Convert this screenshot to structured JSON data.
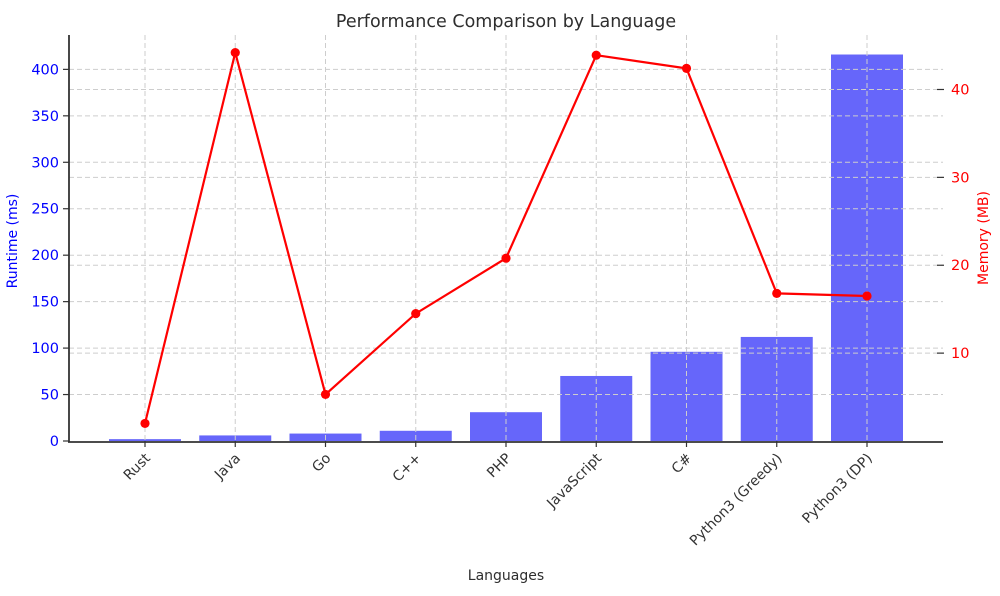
{
  "chart_data": {
    "type": "combo-bar-line-dual-axis",
    "title": "Performance Comparison by Language",
    "xlabel": "Languages",
    "categories": [
      "Rust",
      "Java",
      "Go",
      "C++",
      "PHP",
      "JavaScript",
      "C#",
      "Python3 (Greedy)",
      "Python3 (DP)"
    ],
    "series": [
      {
        "name": "Runtime (ms)",
        "chart": "bar",
        "axis": "left",
        "color": "#6666fa",
        "values": [
          2,
          6,
          8,
          11,
          31,
          70,
          96,
          112,
          416
        ]
      },
      {
        "name": "Memory (MB)",
        "chart": "line",
        "axis": "right",
        "color": "#ff0000",
        "marker": "circle",
        "values": [
          2,
          44.2,
          5.3,
          14.5,
          20.8,
          43.9,
          42.4,
          16.8,
          16.5
        ]
      }
    ],
    "left_axis": {
      "label": "Runtime (ms)",
      "color": "#0000ff",
      "ticks": [
        0,
        50,
        100,
        150,
        200,
        250,
        300,
        350,
        400
      ],
      "range": [
        0,
        437
      ]
    },
    "right_axis": {
      "label": "Memory (MB)",
      "color": "#ff0000",
      "ticks": [
        10,
        20,
        30,
        40
      ],
      "range": [
        0,
        46.2
      ]
    },
    "x_axis": {
      "label": "Languages",
      "tick_rotation": 45
    },
    "grid": {
      "visible": true,
      "style": "dashed",
      "color": "#cdcdcd",
      "both_axes": true,
      "vertical": true
    },
    "legend": {
      "visible": false
    },
    "background": "#ffffff"
  }
}
